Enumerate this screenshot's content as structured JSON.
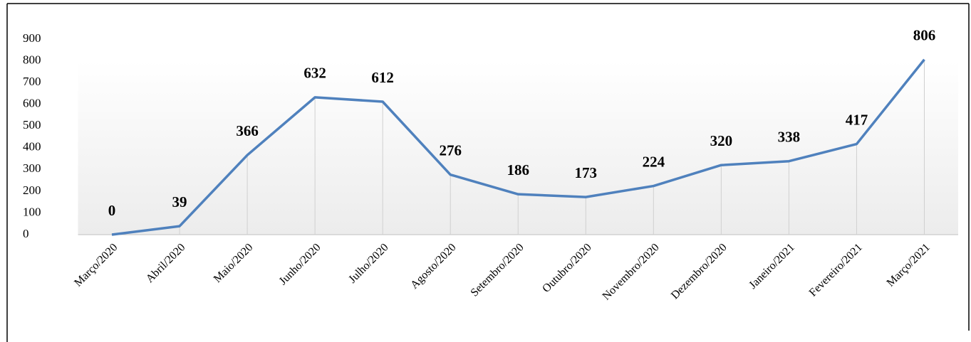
{
  "chart_data": {
    "type": "line",
    "categories": [
      "Março/2020",
      "Abril/2020",
      "Maio/2020",
      "Junho/2020",
      "Julho/2020",
      "Agosto/2020",
      "Setembro/2020",
      "Outubro/2020",
      "Novembro/2020",
      "Dezembro/2020",
      "Janeiro/2021",
      "Fevereiro/2021",
      "Março/2021"
    ],
    "values": [
      0,
      39,
      366,
      632,
      612,
      276,
      186,
      173,
      224,
      320,
      338,
      417,
      806
    ],
    "color": "#4f81bd",
    "ylim": [
      0,
      900
    ],
    "yticks": [
      0,
      100,
      200,
      300,
      400,
      500,
      600,
      700,
      800,
      900
    ],
    "drop_lines": true
  }
}
